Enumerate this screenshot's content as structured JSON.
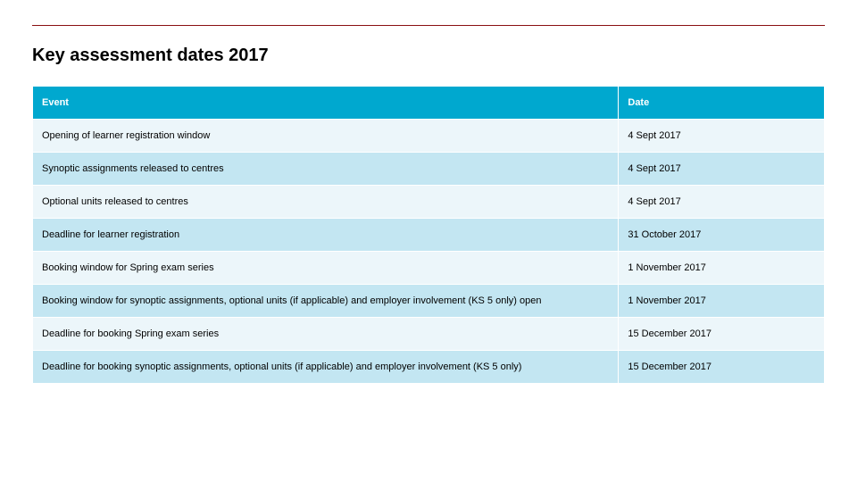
{
  "layout": {
    "rule_color": "#8a0f12",
    "event_col_width_pct": 74,
    "date_col_width_pct": 26
  },
  "title": "Key assessment dates 2017",
  "table": {
    "header_bg": "#00a8cf",
    "header_fg": "#ffffff",
    "row_bg_odd": "#ecf6fa",
    "row_bg_even": "#c3e6f2",
    "columns": [
      "Event",
      "Date"
    ],
    "rows": [
      {
        "event": "Opening of learner registration window",
        "date": "4 Sept 2017"
      },
      {
        "event": "Synoptic assignments released to centres",
        "date": "4 Sept 2017"
      },
      {
        "event": "Optional units released to centres",
        "date": "4 Sept 2017"
      },
      {
        "event": "Deadline for learner registration",
        "date": "31 October 2017"
      },
      {
        "event": "Booking window for Spring exam series",
        "date": "1 November 2017"
      },
      {
        "event": "Booking window for synoptic assignments, optional units (if applicable) and employer involvement (KS 5 only) open",
        "date": "1 November 2017"
      },
      {
        "event": "Deadline for booking Spring exam series",
        "date": "15 December 2017"
      },
      {
        "event": "Deadline for booking synoptic assignments, optional units (if applicable) and employer involvement (KS 5 only)",
        "date": "15 December 2017"
      }
    ]
  }
}
